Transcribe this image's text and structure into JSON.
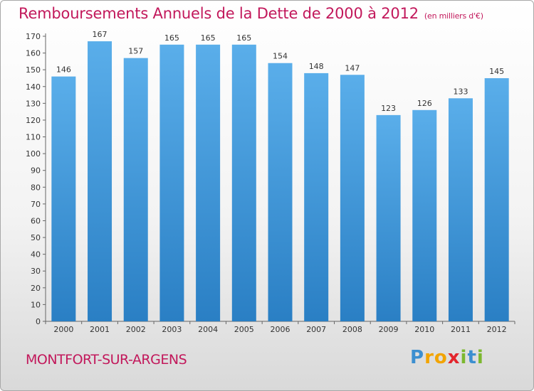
{
  "chart_data": {
    "type": "bar",
    "title": "Remboursements Annuels de la Dette de 2000 à 2012",
    "subtitle": "(en milliers d'€)",
    "categories": [
      "2000",
      "2001",
      "2002",
      "2003",
      "2004",
      "2005",
      "2006",
      "2007",
      "2008",
      "2009",
      "2010",
      "2011",
      "2012"
    ],
    "values": [
      146,
      167,
      157,
      165,
      165,
      165,
      154,
      148,
      147,
      123,
      126,
      133,
      145
    ],
    "ylim": [
      0,
      170
    ],
    "yticks": [
      0,
      10,
      20,
      30,
      40,
      50,
      60,
      70,
      80,
      90,
      100,
      110,
      120,
      130,
      140,
      150,
      160,
      170
    ],
    "xlabel": "",
    "ylabel": "",
    "grid": false,
    "data_labels": true,
    "bar_color": "#3b93d6"
  },
  "footer": {
    "town": "MONTFORT-SUR-ARGENS",
    "logo": {
      "text": "Proxiti",
      "letters": [
        "P",
        "r",
        "o",
        "x",
        "i",
        "t",
        "i"
      ],
      "colors": [
        "#3c8fd0",
        "#f2a400",
        "#f2a400",
        "#e3262d",
        "#7cb82f",
        "#3c8fd0",
        "#7cb82f"
      ]
    }
  }
}
